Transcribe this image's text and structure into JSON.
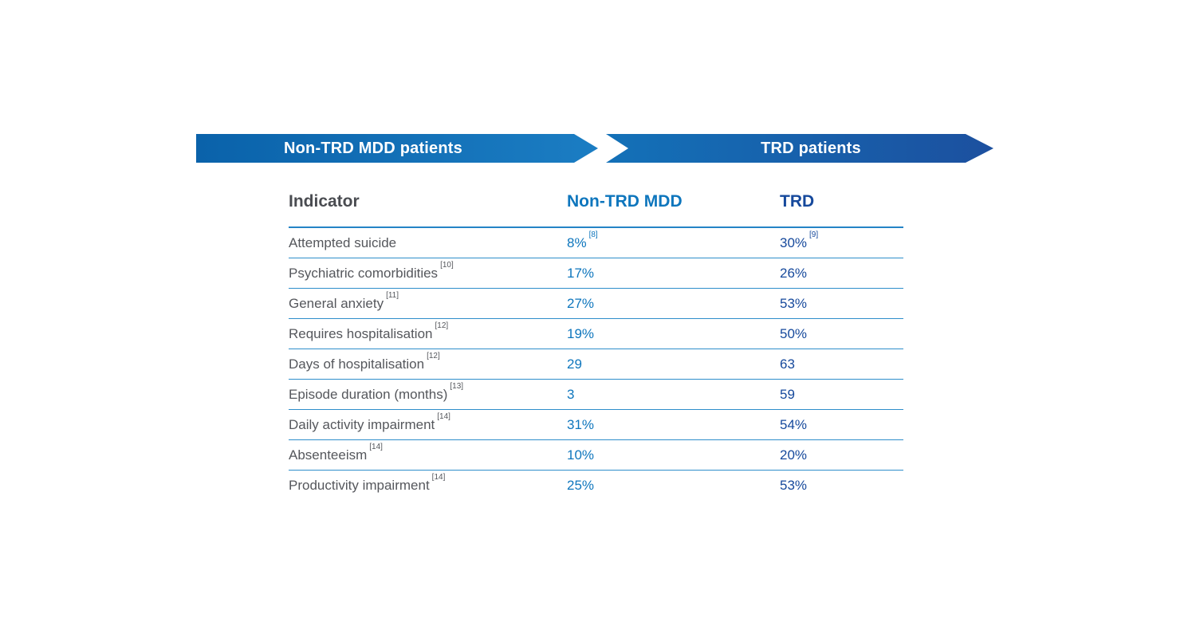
{
  "banners": [
    {
      "label": "Non-TRD MDD patients"
    },
    {
      "label": "TRD patients"
    }
  ],
  "table": {
    "headers": {
      "indicator": "Indicator",
      "non_trd": "Non-TRD MDD",
      "trd": "TRD"
    },
    "rows": [
      {
        "indicator": "Attempted suicide",
        "indicator_ref": "",
        "non_trd": "8%",
        "non_trd_ref": "[8]",
        "trd": "30%",
        "trd_ref": "[9]"
      },
      {
        "indicator": "Psychiatric comorbidities",
        "indicator_ref": "[10]",
        "non_trd": "17%",
        "non_trd_ref": "",
        "trd": "26%",
        "trd_ref": ""
      },
      {
        "indicator": "General anxiety",
        "indicator_ref": "[11]",
        "non_trd": "27%",
        "non_trd_ref": "",
        "trd": "53%",
        "trd_ref": ""
      },
      {
        "indicator": "Requires hospitalisation",
        "indicator_ref": "[12]",
        "non_trd": "19%",
        "non_trd_ref": "",
        "trd": "50%",
        "trd_ref": ""
      },
      {
        "indicator": "Days of hospitalisation",
        "indicator_ref": "[12]",
        "non_trd": "29",
        "non_trd_ref": "",
        "trd": "63",
        "trd_ref": ""
      },
      {
        "indicator": "Episode duration (months)",
        "indicator_ref": "[13]",
        "non_trd": "3",
        "non_trd_ref": "",
        "trd": "59",
        "trd_ref": ""
      },
      {
        "indicator": "Daily activity impairment",
        "indicator_ref": "[14]",
        "non_trd": "31%",
        "non_trd_ref": "",
        "trd": "54%",
        "trd_ref": ""
      },
      {
        "indicator": "Absenteeism",
        "indicator_ref": "[14]",
        "non_trd": "10%",
        "non_trd_ref": "",
        "trd": "20%",
        "trd_ref": ""
      },
      {
        "indicator": "Productivity impairment",
        "indicator_ref": "[14]",
        "non_trd": "25%",
        "non_trd_ref": "",
        "trd": "53%",
        "trd_ref": ""
      }
    ]
  },
  "chart_data": {
    "type": "table",
    "title": "Non-TRD MDD patients vs TRD patients",
    "columns": [
      "Indicator",
      "Non-TRD MDD",
      "TRD"
    ],
    "categories": [
      "Attempted suicide",
      "Psychiatric comorbidities",
      "General anxiety",
      "Requires hospitalisation",
      "Days of hospitalisation",
      "Episode duration (months)",
      "Daily activity impairment",
      "Absenteeism",
      "Productivity impairment"
    ],
    "series": [
      {
        "name": "Non-TRD MDD",
        "values": [
          8,
          17,
          27,
          19,
          29,
          3,
          31,
          10,
          25
        ]
      },
      {
        "name": "TRD",
        "values": [
          30,
          26,
          53,
          50,
          63,
          59,
          54,
          20,
          53
        ]
      }
    ],
    "footnote_refs": {
      "Attempted suicide (Non-TRD MDD)": "[8]",
      "Attempted suicide (TRD)": "[9]",
      "Psychiatric comorbidities": "[10]",
      "General anxiety": "[11]",
      "Requires hospitalisation": "[12]",
      "Days of hospitalisation": "[12]",
      "Episode duration (months)": "[13]",
      "Daily activity impairment": "[14]",
      "Absenteeism": "[14]",
      "Productivity impairment": "[14]"
    }
  },
  "colors": {
    "banner1_gradient_start": "#0a62aa",
    "banner1_gradient_end": "#1b7dc3",
    "banner2_gradient_start": "#1371b8",
    "banner2_gradient_end": "#1c509f",
    "header_indicator_text": "#4a4c51",
    "non_trd_blue": "#0e76bd",
    "trd_navy": "#16499c",
    "label_gray": "#55575c",
    "divider_blue": "#2e8ecb",
    "background": "#ffffff"
  }
}
